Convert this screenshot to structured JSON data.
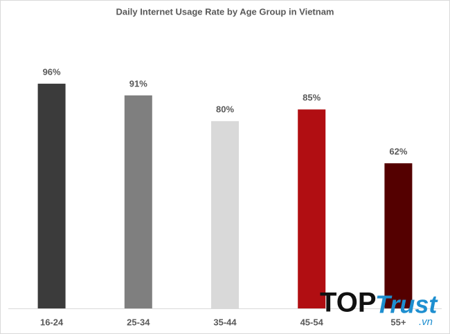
{
  "chart_data": {
    "type": "bar",
    "title": "Daily Internet Usage Rate by Age Group in Vietnam",
    "categories": [
      "16-24",
      "25-34",
      "35-44",
      "45-54",
      "55+"
    ],
    "values": [
      96,
      91,
      80,
      85,
      62
    ],
    "value_labels": [
      "96%",
      "91%",
      "80%",
      "85%",
      "62%"
    ],
    "colors": [
      "#3b3b3b",
      "#7f7f7f",
      "#d9d9d9",
      "#b10e12",
      "#540000"
    ],
    "ylim": [
      0,
      100
    ]
  },
  "watermark": {
    "brand": "TOP",
    "name": "Trust",
    "suffix": ".vn"
  }
}
